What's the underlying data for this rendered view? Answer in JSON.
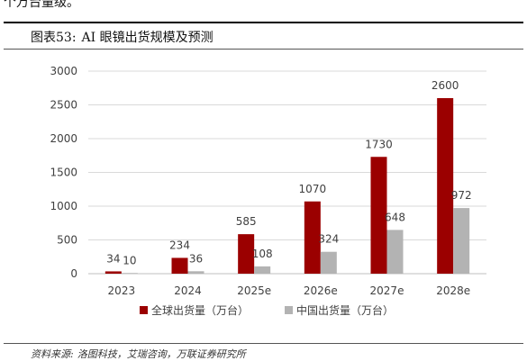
{
  "page": {
    "top_fragment": "个万台量级。",
    "figure_label": "图表53:",
    "figure_title": "AI 眼镜出货规模及预测",
    "source_label": "资料来源:",
    "source_text": "洛图科技，艾瑞咨询，万联证券研究所"
  },
  "colors": {
    "series1": "#9b0000",
    "series2": "#b3b3b3",
    "grid": "#d9d9d9",
    "axis": "#bfbfbf"
  },
  "chart_data": {
    "type": "bar",
    "title": "AI 眼镜出货规模及预测",
    "categories": [
      "2023",
      "2024",
      "2025e",
      "2026e",
      "2027e",
      "2028e"
    ],
    "series": [
      {
        "name": "全球出货量（万台）",
        "values": [
          34,
          234,
          585,
          1070,
          1730,
          2600
        ]
      },
      {
        "name": "中国出货量（万台）",
        "values": [
          10,
          36,
          108,
          324,
          648,
          972
        ]
      }
    ],
    "ylim": [
      0,
      3000
    ],
    "yticks": [
      0,
      500,
      1000,
      1500,
      2000,
      2500,
      3000
    ],
    "grid": true,
    "legend": "bottom-center",
    "xlabel": "",
    "ylabel": ""
  }
}
